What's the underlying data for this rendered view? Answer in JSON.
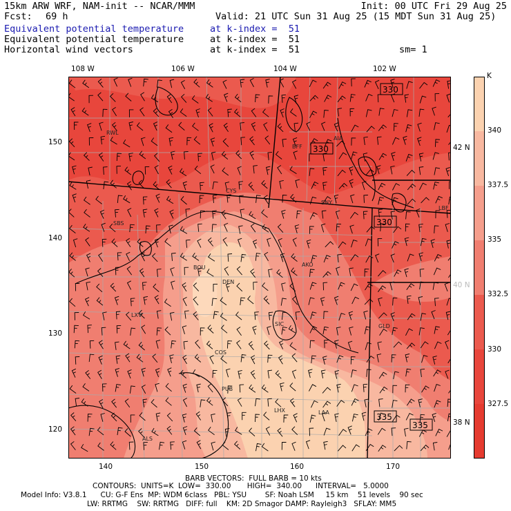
{
  "header": {
    "model": "15km ARW WRF, NAM-init -- NCAR/MMM",
    "init": "Init: 00 UTC Fri 29 Aug 25",
    "fcst_label": "Fcst:",
    "fcst_value": "69 h",
    "valid": "Valid: 21 UTC Sun 31 Aug 25 (15 MDT Sun 31 Aug 25)",
    "fields": [
      {
        "name": "Equivalent potential temperature",
        "level": "at k-index =  51",
        "color": "#1a1ab0"
      },
      {
        "name": "Equivalent potential temperature",
        "level": "at k-index =  51",
        "color": "#000000"
      },
      {
        "name": "Horizontal wind vectors",
        "level": "at k-index =  51",
        "color": "#000000"
      }
    ],
    "smoothing": "sm= 1"
  },
  "map": {
    "top_lon_labels": [
      "108 W",
      "106 W",
      "104 W",
      "102 W"
    ],
    "right_lat_labels": [
      "42 N",
      "40 N",
      "38 N"
    ],
    "bottom_grid_labels": [
      "140",
      "150",
      "160",
      "170"
    ],
    "left_grid_labels": [
      "150",
      "140",
      "130",
      "120"
    ],
    "stations": [
      "RWL",
      "BFF",
      "AIA",
      "CYS",
      "SNY",
      "LBF",
      "SBS",
      "BOU",
      "DEN",
      "AKO",
      "LXV",
      "GLD",
      "COS",
      "PUB",
      "LHX",
      "LAA",
      "ALS",
      "SIC"
    ],
    "contour_labels": [
      "330",
      "330",
      "330",
      "335",
      "335"
    ]
  },
  "colorbar": {
    "unit": "K",
    "labels": [
      "340",
      "337.5",
      "335",
      "332.5",
      "330",
      "327.5"
    ],
    "colors": [
      "#fbd2b0",
      "#f8b8a0",
      "#f59e8c",
      "#f07e70",
      "#eb5a4e",
      "#e8463c",
      "#e53b30"
    ]
  },
  "footer": {
    "barb": "BARB VECTORS:  FULL BARB = 10 kts",
    "contours": "CONTOURS:  UNITS=K  LOW=  330.00       HIGH=  340.00      INTERVAL=   5.0000",
    "model_info": "Model Info: V3.8.1      CU: G-F Ens  MP: WDM 6class   PBL: YSU        SF: Noah LSM     15 km    51 levels    90 sec",
    "model_info2": "LW: RRTMG    SW: RRTMG   DIFF: full    KM: 2D Smagor DAMP: Rayleigh3   SFLAY: MM5"
  }
}
